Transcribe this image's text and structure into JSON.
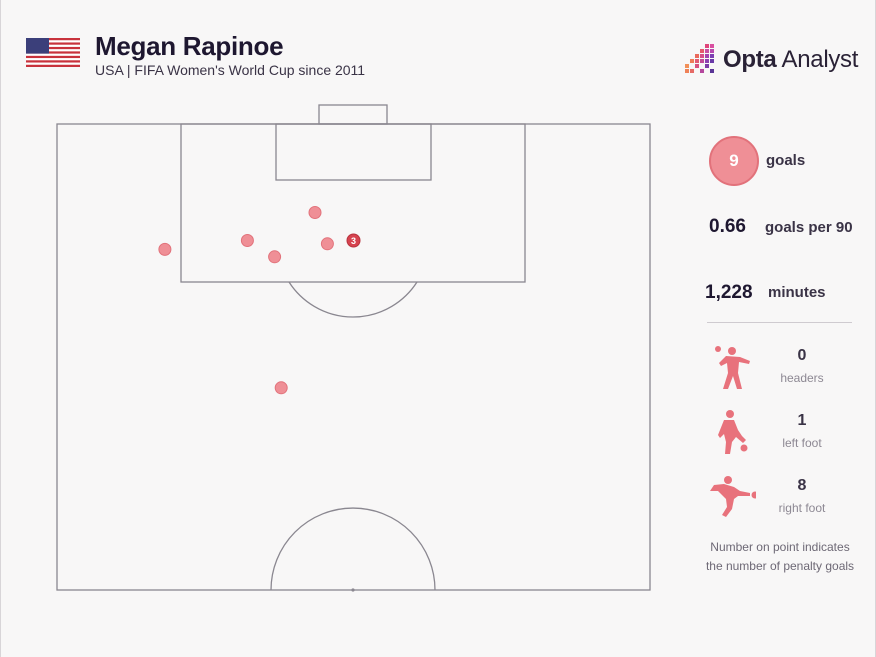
{
  "header": {
    "title": "Megan Rapinoe",
    "subtitle": "USA | FIFA Women's World Cup since 2011",
    "flag_icon": "us-flag-icon"
  },
  "logo": {
    "brand_bold": "Opta",
    "brand_rest": " Analyst",
    "icon": "opta-pixel-logo-icon"
  },
  "colors": {
    "accent": "#ef8f96",
    "accent_dark": "#e2727b",
    "penalty": "#d6434f",
    "pitch_line": "#8a8790",
    "text": "#1e1730"
  },
  "stats": {
    "goals_value": "9",
    "goals_label": "goals",
    "goals_per_90_value": "0.66",
    "goals_per_90_label": "goals per 90",
    "minutes_value": "1,228",
    "minutes_label": "minutes"
  },
  "goal_types": [
    {
      "count": "0",
      "label": "headers",
      "icon": "header-player-icon"
    },
    {
      "count": "1",
      "label": "left foot",
      "icon": "left-foot-player-icon"
    },
    {
      "count": "8",
      "label": "right foot",
      "icon": "right-foot-player-icon"
    }
  ],
  "note": {
    "line1": "Number on point indicates",
    "line2": "the number of penalty goals"
  },
  "chart_data": {
    "type": "scatter",
    "description_units": "pitch coordinates: x = 0 (left touchline) to 100 (right touchline); y = distance from goal line as % of half-pitch length",
    "points": [
      {
        "x": 43.5,
        "y": 19.0,
        "penalties": 0
      },
      {
        "x": 32.1,
        "y": 25.0,
        "penalties": 0
      },
      {
        "x": 50.0,
        "y": 25.0,
        "penalties": 3,
        "label": "3"
      },
      {
        "x": 45.6,
        "y": 25.7,
        "penalties": 0
      },
      {
        "x": 18.2,
        "y": 26.9,
        "penalties": 0
      },
      {
        "x": 36.7,
        "y": 28.5,
        "penalties": 0
      },
      {
        "x": 37.8,
        "y": 56.6,
        "penalties": 0
      }
    ]
  }
}
